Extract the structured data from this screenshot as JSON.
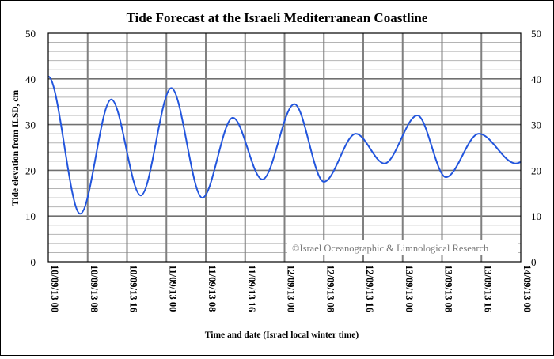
{
  "chart_data": {
    "type": "line",
    "title": "Tide Forecast at the Israeli Mediterranean Coastline",
    "xlabel": "Time and date (Israel local winter time)",
    "ylabel": "Tide elevation from ILSD, cm",
    "ylim": [
      0,
      50
    ],
    "y_ticks": [
      0,
      10,
      20,
      30,
      40,
      50
    ],
    "x_tick_labels": [
      "10/09/13 00",
      "10/09/13 08",
      "10/09/13 16",
      "11/09/13 00",
      "11/09/13 08",
      "11/09/13 16",
      "12/09/13 00",
      "12/09/13 08",
      "12/09/13 16",
      "13/09/13 00",
      "13/09/13 08",
      "13/09/13 16",
      "14/09/13 00"
    ],
    "xlim_hours": [
      0,
      96
    ],
    "grid": true,
    "line_color": "#2255dd",
    "annotation": "©Israel Oceanographic & Limnological Research",
    "series": [
      {
        "x_hours": [
          0,
          6.5,
          12.8,
          18.8,
          25.0,
          31.3,
          37.5,
          43.5,
          50.0,
          56.0,
          62.5,
          68.3,
          75.0,
          80.8,
          87.5,
          95.0,
          96.0
        ],
        "values": [
          40.5,
          10.5,
          35.5,
          14.5,
          38.0,
          14.0,
          31.5,
          18.0,
          34.5,
          17.5,
          28.0,
          21.5,
          32.0,
          18.5,
          28.0,
          21.5,
          21.8
        ]
      }
    ]
  }
}
